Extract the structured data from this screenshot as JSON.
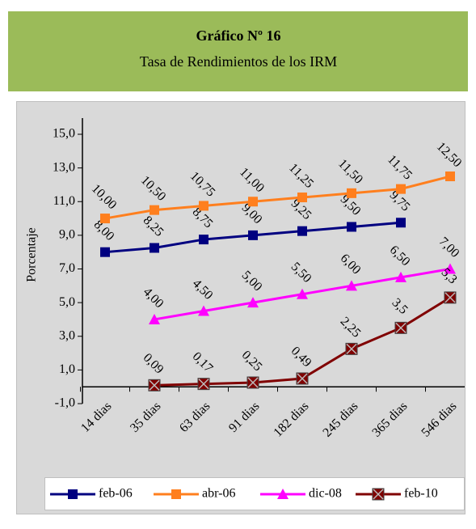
{
  "chart_data": {
    "type": "line",
    "title": "Gráfico Nº 16",
    "subtitle": "Tasa de Rendimientos de los IRM",
    "y_label": "Porcentaje",
    "categories": [
      "14 dias",
      "35 dias",
      "63 dias",
      "91 dias",
      "182 dias",
      "245 dias",
      "365 dias",
      "546 dias"
    ],
    "series": [
      {
        "name": "feb-06",
        "color": "#000080",
        "marker": "square",
        "values": [
          8.0,
          8.25,
          8.75,
          9.0,
          9.25,
          9.5,
          9.75,
          null
        ],
        "value_labels": [
          "8,00",
          "8,25",
          "8,75",
          "9,00",
          "9,25",
          "9,50",
          "9,75",
          null
        ]
      },
      {
        "name": "abr-06",
        "color": "#ff7f1e",
        "marker": "square",
        "values": [
          10.0,
          10.5,
          10.75,
          11.0,
          11.25,
          11.5,
          11.75,
          12.5
        ],
        "value_labels": [
          "10,00",
          "10,50",
          "10,75",
          "11,00",
          "11,25",
          "11,50",
          "11,75",
          "12,50"
        ]
      },
      {
        "name": "dic-08",
        "color": "#ff00ff",
        "marker": "triangle",
        "values": [
          null,
          4.0,
          4.5,
          5.0,
          5.5,
          6.0,
          6.5,
          7.0
        ],
        "value_labels": [
          null,
          "4,00",
          "4,50",
          "5,00",
          "5,50",
          "6,00",
          "6,50",
          "7,00"
        ]
      },
      {
        "name": "feb-10",
        "color": "#800000",
        "marker": "x",
        "values": [
          null,
          0.09,
          0.17,
          0.25,
          0.49,
          2.25,
          3.5,
          5.3
        ],
        "value_labels": [
          null,
          "0,09",
          "0,17",
          "0,25",
          "0,49",
          "2,25",
          "3,5",
          "5,3"
        ]
      }
    ],
    "ylim": [
      -1,
      15
    ],
    "yticks": [
      {
        "value": -1,
        "label": "-1,0"
      },
      {
        "value": 1,
        "label": "1,0"
      },
      {
        "value": 3,
        "label": "3,0"
      },
      {
        "value": 5,
        "label": "5,0"
      },
      {
        "value": 7,
        "label": "7,0"
      },
      {
        "value": 9,
        "label": "9,0"
      },
      {
        "value": 11,
        "label": "11,0"
      },
      {
        "value": 13,
        "label": "13,0"
      },
      {
        "value": 15,
        "label": "15,0"
      }
    ],
    "grid": false,
    "legend": "bottom"
  }
}
